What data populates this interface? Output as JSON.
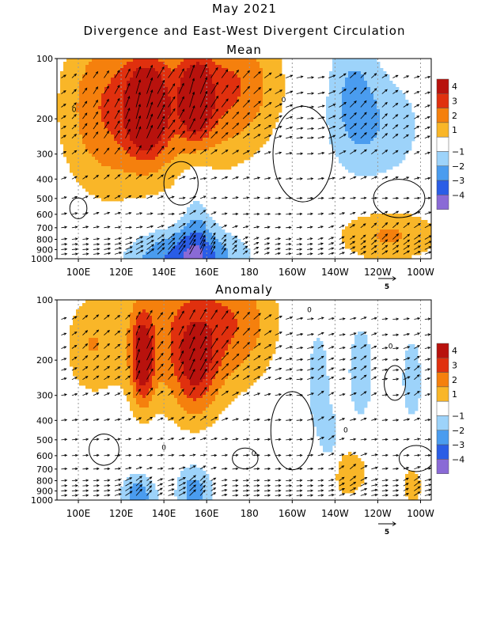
{
  "page": {
    "title": "May 2021",
    "subtitle": "Divergence and East-West Divergent Circulation"
  },
  "colors": {
    "positive": [
      "#ffffff",
      "#f9b628",
      "#f5800d",
      "#e0300e",
      "#b8120d"
    ],
    "negative": [
      "#ffffff",
      "#9dd3fa",
      "#4a9cef",
      "#2a5de6",
      "#8a6ad6"
    ],
    "contour": "#000000",
    "grid": "#9a9a9a"
  },
  "chart_data": [
    {
      "type": "heatmap",
      "title": "Mean",
      "x_ticks": [
        "100E",
        "120E",
        "140E",
        "160E",
        "180",
        "160W",
        "140W",
        "120W",
        "100W"
      ],
      "y_ticks": [
        "100",
        "200",
        "300",
        "400",
        "500",
        "600",
        "700",
        "800",
        "900",
        "1000"
      ],
      "xlim": [
        90,
        265
      ],
      "ylim": [
        1000,
        100
      ],
      "y_scale": "log-pressure",
      "vector_reference": "5",
      "colorbar": {
        "levels": [
          "4",
          "3",
          "2",
          "1",
          "−1",
          "−2",
          "−3",
          "−4"
        ]
      },
      "contour_labels": [
        "0",
        "0"
      ],
      "features": [
        {
          "lon": 132,
          "p": 180,
          "value": 4,
          "rx": 9,
          "rp": 0.22
        },
        {
          "lon": 155,
          "p": 160,
          "value": 4,
          "rx": 7,
          "rp": 0.18
        },
        {
          "lon": 140,
          "p": 170,
          "value": 2.6,
          "rx": 34,
          "rp": 0.42
        },
        {
          "lon": 175,
          "p": 135,
          "value": 2.2,
          "rx": 22,
          "rp": 0.32
        },
        {
          "lon": 110,
          "p": 180,
          "value": 1.8,
          "rx": 20,
          "rp": 0.45
        },
        {
          "lon": 228,
          "p": 130,
          "value": -1.5,
          "rx": 12,
          "rp": 0.35
        },
        {
          "lon": 240,
          "p": 220,
          "value": -1.7,
          "rx": 24,
          "rp": 0.3
        },
        {
          "lon": 150,
          "p": 1000,
          "value": -3.5,
          "rx": 28,
          "rp": 0.16
        },
        {
          "lon": 155,
          "p": 640,
          "value": -1.6,
          "rx": 8,
          "rp": 0.28
        },
        {
          "lon": 245,
          "p": 760,
          "value": 2.2,
          "rx": 26,
          "rp": 0.14
        }
      ]
    },
    {
      "type": "heatmap",
      "title": "Anomaly",
      "x_ticks": [
        "100E",
        "120E",
        "140E",
        "160E",
        "180",
        "160W",
        "140W",
        "120W",
        "100W"
      ],
      "y_ticks": [
        "100",
        "200",
        "300",
        "400",
        "500",
        "600",
        "700",
        "800",
        "900",
        "1000"
      ],
      "xlim": [
        90,
        265
      ],
      "ylim": [
        1000,
        100
      ],
      "y_scale": "log-pressure",
      "vector_reference": "5",
      "colorbar": {
        "levels": [
          "4",
          "3",
          "2",
          "1",
          "−1",
          "−2",
          "−3",
          "−4"
        ]
      },
      "contour_labels": [
        "0",
        "0",
        "0",
        "0",
        "0"
      ],
      "features": [
        {
          "lon": 130,
          "p": 200,
          "value": 4,
          "rx": 5,
          "rp": 0.22
        },
        {
          "lon": 145,
          "p": 140,
          "value": 2.5,
          "rx": 30,
          "rp": 0.42
        },
        {
          "lon": 155,
          "p": 220,
          "value": 2.6,
          "rx": 10,
          "rp": 0.25
        },
        {
          "lon": 175,
          "p": 130,
          "value": 2.0,
          "rx": 20,
          "rp": 0.3
        },
        {
          "lon": 105,
          "p": 170,
          "value": 1.6,
          "rx": 12,
          "rp": 0.25
        },
        {
          "lon": 212,
          "p": 250,
          "value": -1.7,
          "rx": 6,
          "rp": 0.3
        },
        {
          "lon": 232,
          "p": 230,
          "value": -1.7,
          "rx": 7,
          "rp": 0.28
        },
        {
          "lon": 256,
          "p": 250,
          "value": -1.9,
          "rx": 5,
          "rp": 0.22
        },
        {
          "lon": 218,
          "p": 520,
          "value": -1.5,
          "rx": 5,
          "rp": 0.18
        },
        {
          "lon": 128,
          "p": 950,
          "value": -2.6,
          "rx": 9,
          "rp": 0.12
        },
        {
          "lon": 154,
          "p": 900,
          "value": -2.5,
          "rx": 9,
          "rp": 0.15
        },
        {
          "lon": 226,
          "p": 720,
          "value": 2.0,
          "rx": 10,
          "rp": 0.13
        },
        {
          "lon": 256,
          "p": 850,
          "value": 1.8,
          "rx": 5,
          "rp": 0.1
        }
      ]
    }
  ]
}
